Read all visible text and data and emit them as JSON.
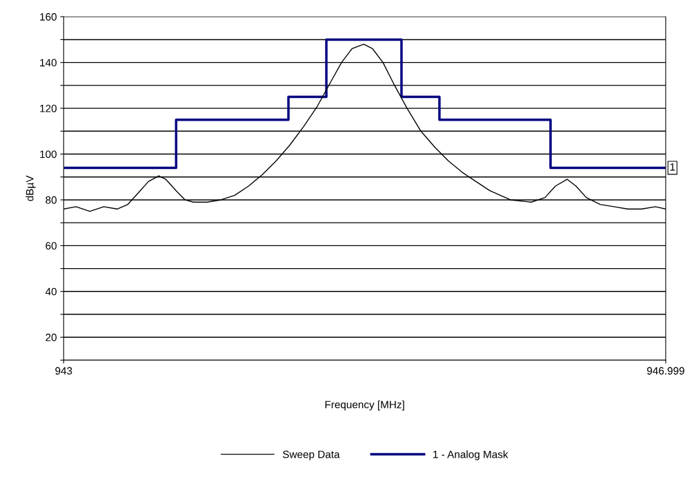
{
  "chart_data": {
    "type": "line",
    "xlabel": "Frequency [MHz]",
    "ylabel": "dBµV",
    "xlim": [
      943,
      946.999
    ],
    "xticks": [
      943,
      946.999
    ],
    "ylim": [
      10,
      160
    ],
    "yticks": [
      {
        "value": 10,
        "label": null
      },
      20,
      {
        "value": 30,
        "label": null
      },
      40,
      {
        "value": 50,
        "label": null
      },
      60,
      {
        "value": 70,
        "label": null
      },
      80,
      {
        "value": 90,
        "label": null
      },
      100,
      {
        "value": 110,
        "label": null
      },
      120,
      {
        "value": 130,
        "label": null
      },
      140,
      {
        "value": 150,
        "label": null
      },
      160
    ],
    "grid": "y",
    "legend": "bottom",
    "series": [
      {
        "name": "Sweep Data",
        "color": "#000000",
        "x": [
          943,
          943.082,
          943.174,
          943.266,
          943.357,
          943.426,
          943.495,
          943.563,
          943.632,
          943.678,
          943.747,
          943.806,
          943.861,
          943.953,
          944.044,
          944.136,
          944.228,
          944.319,
          944.411,
          944.503,
          944.594,
          944.686,
          944.778,
          944.846,
          944.915,
          944.993,
          945.052,
          945.121,
          945.19,
          945.281,
          945.373,
          945.465,
          945.556,
          945.648,
          945.739,
          945.831,
          945.968,
          946.106,
          946.197,
          946.266,
          946.344,
          946.403,
          946.472,
          946.564,
          946.656,
          946.747,
          946.839,
          946.931,
          946.999
        ],
        "values": [
          76,
          77,
          75,
          77,
          76,
          78,
          83,
          88,
          90.5,
          89,
          84,
          80,
          79,
          79,
          80,
          82,
          86,
          91,
          97,
          104,
          112,
          121,
          132,
          140,
          146,
          148,
          146,
          140,
          131,
          120,
          110,
          103,
          97,
          92,
          88,
          84,
          80,
          79,
          81,
          86,
          89,
          86,
          81,
          78,
          77,
          76,
          76,
          77,
          76
        ]
      },
      {
        "name": "1 - Analog Mask",
        "color": "#000080",
        "type": "step",
        "x": [
          943,
          943.747,
          944.493,
          944.745,
          945.244,
          945.496,
          946.234,
          946.999
        ],
        "values": [
          94,
          115,
          125,
          150,
          125,
          115,
          94,
          94
        ]
      }
    ],
    "annotations": [
      {
        "text": "1",
        "x": 946.999,
        "y": 94
      }
    ]
  }
}
